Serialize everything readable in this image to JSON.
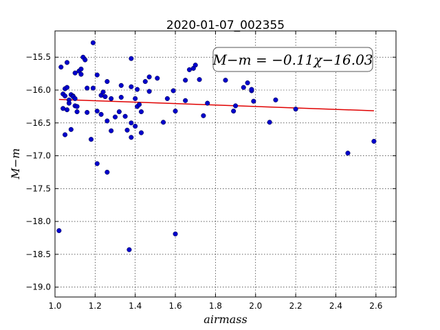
{
  "chart_data": {
    "type": "scatter",
    "title": "2020-01-07_002355",
    "xlabel": "airmass",
    "ylabel": "M−m",
    "xlim": [
      1.0,
      2.7
    ],
    "ylim": [
      -15.1,
      -19.15
    ],
    "y_inverted": true,
    "grid": true,
    "xticks": [
      1.0,
      1.2,
      1.4,
      1.6,
      1.8,
      2.0,
      2.2,
      2.4,
      2.6
    ],
    "xtick_labels": [
      "1.0",
      "1.2",
      "1.4",
      "1.6",
      "1.8",
      "2.0",
      "2.2",
      "2.4",
      "2.6"
    ],
    "yticks": [
      -15.5,
      -16.0,
      -16.5,
      -17.0,
      -17.5,
      -18.0,
      -18.5,
      -19.0
    ],
    "ytick_labels": [
      "−15.5",
      "−16.0",
      "−16.5",
      "−17.0",
      "−17.5",
      "−18.0",
      "−18.5",
      "−19.0"
    ],
    "annotation": "M−m = −0.11χ−16.03",
    "annotation_placement": "top-right",
    "point_color": "#0000cc",
    "fit_color": "#e00000",
    "series": [
      {
        "type": "scatter",
        "points": [
          [
            1.02,
            -18.14
          ],
          [
            1.03,
            -15.65
          ],
          [
            1.04,
            -16.06
          ],
          [
            1.04,
            -16.28
          ],
          [
            1.05,
            -16.68
          ],
          [
            1.05,
            -15.98
          ],
          [
            1.05,
            -16.09
          ],
          [
            1.06,
            -15.58
          ],
          [
            1.06,
            -15.96
          ],
          [
            1.06,
            -16.3
          ],
          [
            1.07,
            -16.15
          ],
          [
            1.07,
            -16.2
          ],
          [
            1.08,
            -16.6
          ],
          [
            1.08,
            -16.07
          ],
          [
            1.09,
            -16.09
          ],
          [
            1.09,
            -16.1
          ],
          [
            1.1,
            -15.74
          ],
          [
            1.1,
            -16.24
          ],
          [
            1.1,
            -16.13
          ],
          [
            1.11,
            -16.25
          ],
          [
            1.11,
            -16.33
          ],
          [
            1.12,
            -15.71
          ],
          [
            1.13,
            -15.68
          ],
          [
            1.13,
            -15.76
          ],
          [
            1.14,
            -15.5
          ],
          [
            1.15,
            -15.54
          ],
          [
            1.16,
            -15.97
          ],
          [
            1.16,
            -16.34
          ],
          [
            1.18,
            -16.75
          ],
          [
            1.19,
            -15.97
          ],
          [
            1.19,
            -15.28
          ],
          [
            1.21,
            -15.77
          ],
          [
            1.21,
            -16.32
          ],
          [
            1.21,
            -17.12
          ],
          [
            1.23,
            -16.08
          ],
          [
            1.23,
            -16.37
          ],
          [
            1.24,
            -16.03
          ],
          [
            1.25,
            -16.1
          ],
          [
            1.26,
            -15.87
          ],
          [
            1.26,
            -16.47
          ],
          [
            1.26,
            -17.25
          ],
          [
            1.28,
            -16.13
          ],
          [
            1.28,
            -16.62
          ],
          [
            1.3,
            -16.41
          ],
          [
            1.32,
            -16.33
          ],
          [
            1.33,
            -15.93
          ],
          [
            1.33,
            -16.11
          ],
          [
            1.35,
            -16.4
          ],
          [
            1.36,
            -16.61
          ],
          [
            1.37,
            -18.43
          ],
          [
            1.38,
            -15.52
          ],
          [
            1.38,
            -15.95
          ],
          [
            1.38,
            -16.5
          ],
          [
            1.38,
            -16.72
          ],
          [
            1.4,
            -16.55
          ],
          [
            1.4,
            -16.13
          ],
          [
            1.41,
            -16.25
          ],
          [
            1.41,
            -15.99
          ],
          [
            1.42,
            -16.22
          ],
          [
            1.43,
            -16.33
          ],
          [
            1.43,
            -16.65
          ],
          [
            1.45,
            -15.87
          ],
          [
            1.47,
            -16.02
          ],
          [
            1.47,
            -15.8
          ],
          [
            1.51,
            -15.82
          ],
          [
            1.54,
            -16.49
          ],
          [
            1.56,
            -16.13
          ],
          [
            1.59,
            -16.01
          ],
          [
            1.6,
            -18.19
          ],
          [
            1.6,
            -16.32
          ],
          [
            1.65,
            -15.85
          ],
          [
            1.65,
            -16.16
          ],
          [
            1.67,
            -15.69
          ],
          [
            1.69,
            -15.67
          ],
          [
            1.7,
            -15.62
          ],
          [
            1.72,
            -15.84
          ],
          [
            1.74,
            -16.39
          ],
          [
            1.76,
            -16.2
          ],
          [
            1.85,
            -15.85
          ],
          [
            1.89,
            -16.32
          ],
          [
            1.9,
            -16.24
          ],
          [
            1.94,
            -15.96
          ],
          [
            1.96,
            -15.89
          ],
          [
            1.98,
            -16.01
          ],
          [
            1.98,
            -15.99
          ],
          [
            1.99,
            -16.17
          ],
          [
            2.07,
            -16.49
          ],
          [
            2.1,
            -16.15
          ],
          [
            2.2,
            -16.29
          ],
          [
            2.46,
            -16.96
          ],
          [
            2.59,
            -16.78
          ]
        ]
      },
      {
        "type": "line",
        "slope": -0.11,
        "intercept": -16.03,
        "x_range": [
          1.02,
          2.59
        ]
      }
    ]
  }
}
